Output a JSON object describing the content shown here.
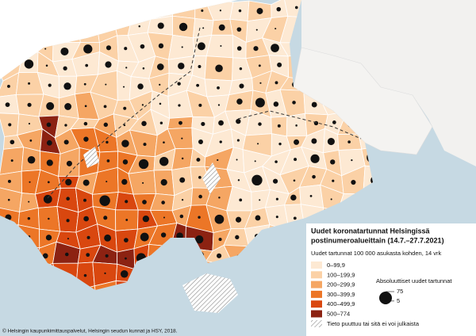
{
  "legend": {
    "title": [
      "Uudet koronatartunnat Helsingissä",
      "postinumeroalueittain (14.7.–27.7.2021)"
    ],
    "subtitle": "Uudet tartunnat 100 000 asukasta kohden, 14 vrk",
    "classes": [
      {
        "label": "0–99,9",
        "color": "#fde9d3"
      },
      {
        "label": "100–199,9",
        "color": "#fbd1a6"
      },
      {
        "label": "200–299,9",
        "color": "#f5a663"
      },
      {
        "label": "300–399,9",
        "color": "#ec7627"
      },
      {
        "label": "400–499,9",
        "color": "#d9470f"
      },
      {
        "label": "500–774",
        "color": "#8c2212"
      }
    ],
    "missing": "Tieto puuttuu tai sitä ei voi julkaista",
    "circles": {
      "title": "Absoluuttiset uudet tartunnat",
      "sizes": [
        75,
        5
      ]
    }
  },
  "credit": "© Helsingin kaupunkimittauspalvelut, Helsingin seudun kunnat ja HSY, 2018."
}
